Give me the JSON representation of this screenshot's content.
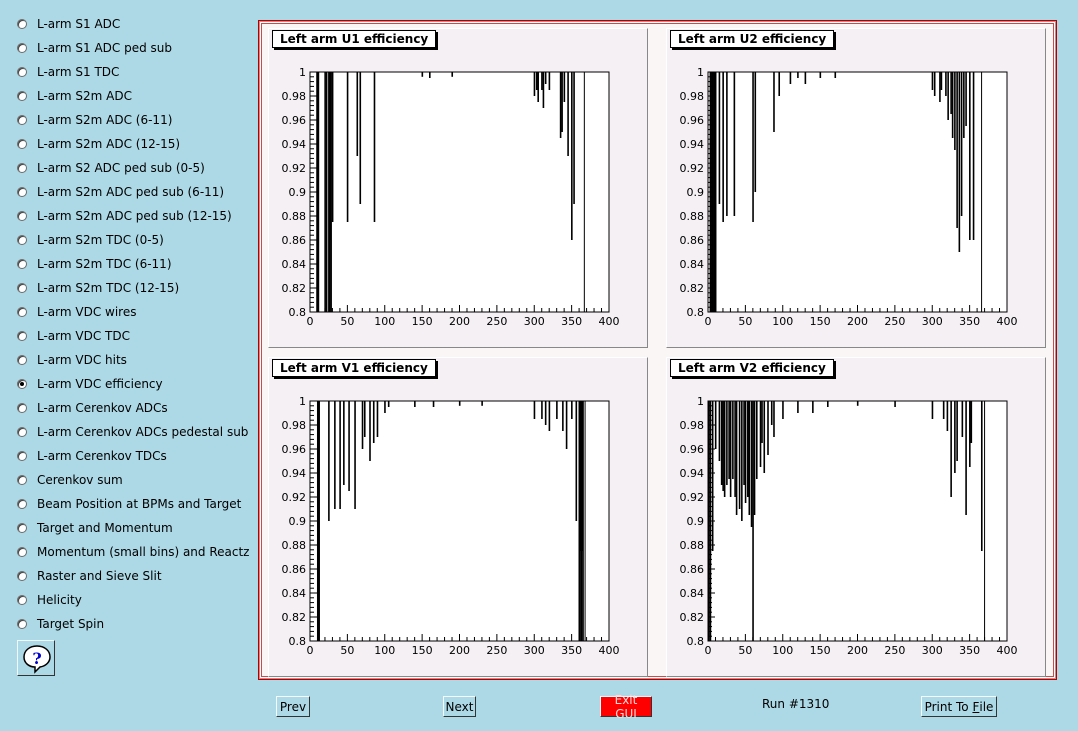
{
  "sidebar": {
    "options": [
      {
        "label": "L-arm S1 ADC",
        "checked": false
      },
      {
        "label": "L-arm S1 ADC ped sub",
        "checked": false
      },
      {
        "label": "L-arm S1 TDC",
        "checked": false
      },
      {
        "label": "L-arm S2m ADC",
        "checked": false
      },
      {
        "label": "L-arm S2m ADC (6-11)",
        "checked": false
      },
      {
        "label": "L-arm S2m ADC (12-15)",
        "checked": false
      },
      {
        "label": "L-arm S2 ADC ped sub (0-5)",
        "checked": false
      },
      {
        "label": "L-arm S2m ADC ped sub (6-11)",
        "checked": false
      },
      {
        "label": "L-arm S2m ADC ped sub (12-15)",
        "checked": false
      },
      {
        "label": "L-arm S2m TDC (0-5)",
        "checked": false
      },
      {
        "label": "L-arm S2m TDC (6-11)",
        "checked": false
      },
      {
        "label": "L-arm S2m TDC (12-15)",
        "checked": false
      },
      {
        "label": "L-arm VDC wires",
        "checked": false
      },
      {
        "label": "L-arm VDC TDC",
        "checked": false
      },
      {
        "label": "L-arm VDC hits",
        "checked": false
      },
      {
        "label": "L-arm VDC efficiency",
        "checked": true
      },
      {
        "label": "L-arm Cerenkov ADCs",
        "checked": false
      },
      {
        "label": "L-arm Cerenkov ADCs pedestal sub",
        "checked": false
      },
      {
        "label": "L-arm Cerenkov TDCs",
        "checked": false
      },
      {
        "label": "Cerenkov sum",
        "checked": false
      },
      {
        "label": "Beam Position at BPMs and Target",
        "checked": false
      },
      {
        "label": "Target and Momentum",
        "checked": false
      },
      {
        "label": "Momentum (small bins) and Reactz",
        "checked": false
      },
      {
        "label": "Raster and Sieve Slit",
        "checked": false
      },
      {
        "label": "Helicity",
        "checked": false
      },
      {
        "label": "Target Spin",
        "checked": false
      }
    ],
    "help_icon": "question-mark-icon"
  },
  "footer": {
    "prev_label": "Prev",
    "next_label": "Next",
    "exit_label": "Exit GUI",
    "run_label": "Run #1310",
    "print_label_prefix": "Print To ",
    "print_label_accel": "F",
    "print_label_suffix": "ile",
    "exit_color": "#ff0000"
  },
  "chart_data": [
    {
      "type": "bar",
      "title": "Left arm U1 efficiency",
      "xlim": [
        0,
        400
      ],
      "ylim": [
        0.8,
        1.0
      ],
      "xticks": [
        0,
        50,
        100,
        150,
        200,
        250,
        300,
        350,
        400
      ],
      "yticks": [
        "0.8",
        "0.82",
        "0.84",
        "0.86",
        "0.88",
        "0.9",
        "0.92",
        "0.94",
        "0.96",
        "0.98",
        "1"
      ],
      "entries_range": [
        9,
        367
      ],
      "dips": [
        [
          10,
          0.8
        ],
        [
          11,
          0.8
        ],
        [
          20,
          0.8
        ],
        [
          22,
          0.8
        ],
        [
          25,
          0.8
        ],
        [
          26,
          0.8
        ],
        [
          27,
          0.86
        ],
        [
          28,
          0.8
        ],
        [
          30,
          0.875
        ],
        [
          50,
          0.875
        ],
        [
          63,
          0.93
        ],
        [
          67,
          0.89
        ],
        [
          86,
          0.875
        ],
        [
          150,
          0.996
        ],
        [
          160,
          0.995
        ],
        [
          190,
          0.996
        ],
        [
          300,
          0.98
        ],
        [
          303,
          0.985
        ],
        [
          305,
          0.975
        ],
        [
          310,
          0.985
        ],
        [
          312,
          0.97
        ],
        [
          315,
          0.99
        ],
        [
          320,
          0.985
        ],
        [
          335,
          0.945
        ],
        [
          337,
          0.95
        ],
        [
          340,
          0.975
        ],
        [
          345,
          0.93
        ],
        [
          350,
          0.86
        ],
        [
          353,
          0.89
        ]
      ]
    },
    {
      "type": "bar",
      "title": "Left arm U2 efficiency",
      "xlim": [
        0,
        400
      ],
      "ylim": [
        0.8,
        1.0
      ],
      "xticks": [
        0,
        50,
        100,
        150,
        200,
        250,
        300,
        350,
        400
      ],
      "yticks": [
        "0.8",
        "0.82",
        "0.84",
        "0.86",
        "0.88",
        "0.9",
        "0.92",
        "0.94",
        "0.96",
        "0.98",
        "1"
      ],
      "entries_range": [
        3,
        366
      ],
      "dips": [
        [
          3,
          0.8
        ],
        [
          4,
          0.8
        ],
        [
          6,
          0.8
        ],
        [
          8,
          0.8
        ],
        [
          9,
          0.8
        ],
        [
          10,
          0.8
        ],
        [
          15,
          0.89
        ],
        [
          20,
          0.875
        ],
        [
          25,
          0.88
        ],
        [
          35,
          0.88
        ],
        [
          60,
          0.875
        ],
        [
          63,
          0.9
        ],
        [
          88,
          0.95
        ],
        [
          95,
          0.98
        ],
        [
          110,
          0.99
        ],
        [
          120,
          0.995
        ],
        [
          130,
          0.99
        ],
        [
          150,
          0.995
        ],
        [
          170,
          0.995
        ],
        [
          300,
          0.985
        ],
        [
          303,
          0.98
        ],
        [
          310,
          0.975
        ],
        [
          312,
          0.985
        ],
        [
          318,
          0.98
        ],
        [
          321,
          0.96
        ],
        [
          325,
          0.965
        ],
        [
          327,
          0.945
        ],
        [
          330,
          0.935
        ],
        [
          333,
          0.87
        ],
        [
          336,
          0.85
        ],
        [
          339,
          0.88
        ],
        [
          342,
          0.945
        ],
        [
          345,
          0.955
        ],
        [
          350,
          0.86
        ],
        [
          355,
          0.86
        ]
      ]
    },
    {
      "type": "bar",
      "title": "Left arm V1 efficiency",
      "xlim": [
        0,
        400
      ],
      "ylim": [
        0.8,
        1.0
      ],
      "xticks": [
        0,
        50,
        100,
        150,
        200,
        250,
        300,
        350,
        400
      ],
      "yticks": [
        "0.8",
        "0.82",
        "0.84",
        "0.86",
        "0.88",
        "0.9",
        "0.92",
        "0.94",
        "0.96",
        "0.98",
        "1"
      ],
      "entries_range": [
        10,
        368
      ],
      "dips": [
        [
          11,
          0.8
        ],
        [
          12,
          0.8
        ],
        [
          25,
          0.9
        ],
        [
          33,
          0.91
        ],
        [
          40,
          0.91
        ],
        [
          45,
          0.93
        ],
        [
          52,
          0.925
        ],
        [
          60,
          0.91
        ],
        [
          70,
          0.96
        ],
        [
          73,
          0.97
        ],
        [
          80,
          0.95
        ],
        [
          85,
          0.965
        ],
        [
          90,
          0.97
        ],
        [
          100,
          0.99
        ],
        [
          105,
          0.995
        ],
        [
          140,
          0.995
        ],
        [
          165,
          0.995
        ],
        [
          200,
          0.996
        ],
        [
          230,
          0.996
        ],
        [
          300,
          0.985
        ],
        [
          310,
          0.985
        ],
        [
          315,
          0.98
        ],
        [
          320,
          0.975
        ],
        [
          330,
          0.985
        ],
        [
          338,
          0.975
        ],
        [
          343,
          0.96
        ],
        [
          350,
          0.985
        ],
        [
          356,
          0.9
        ],
        [
          360,
          0.8
        ],
        [
          361,
          0.8
        ],
        [
          362,
          0.875
        ],
        [
          363,
          0.8
        ],
        [
          364,
          0.875
        ],
        [
          365,
          0.8
        ]
      ]
    },
    {
      "type": "bar",
      "title": "Left arm V2 efficiency",
      "xlim": [
        0,
        400
      ],
      "ylim": [
        0.8,
        1.0
      ],
      "xticks": [
        0,
        50,
        100,
        150,
        200,
        250,
        300,
        350,
        400
      ],
      "yticks": [
        "0.8",
        "0.82",
        "0.84",
        "0.86",
        "0.88",
        "0.9",
        "0.92",
        "0.94",
        "0.96",
        "0.98",
        "1"
      ],
      "entries_range": [
        1,
        370
      ],
      "dips": [
        [
          1,
          0.8
        ],
        [
          3,
          0.8
        ],
        [
          6,
          0.875
        ],
        [
          10,
          0.96
        ],
        [
          15,
          0.95
        ],
        [
          18,
          0.93
        ],
        [
          20,
          0.925
        ],
        [
          22,
          0.92
        ],
        [
          25,
          0.93
        ],
        [
          28,
          0.935
        ],
        [
          30,
          0.92
        ],
        [
          33,
          0.935
        ],
        [
          36,
          0.92
        ],
        [
          38,
          0.905
        ],
        [
          42,
          0.91
        ],
        [
          45,
          0.9
        ],
        [
          48,
          0.93
        ],
        [
          50,
          0.915
        ],
        [
          53,
          0.92
        ],
        [
          55,
          0.905
        ],
        [
          58,
          0.895
        ],
        [
          60,
          0.8
        ],
        [
          62,
          0.905
        ],
        [
          65,
          0.935
        ],
        [
          70,
          0.945
        ],
        [
          72,
          0.965
        ],
        [
          75,
          0.94
        ],
        [
          80,
          0.955
        ],
        [
          85,
          0.98
        ],
        [
          88,
          0.97
        ],
        [
          100,
          0.985
        ],
        [
          120,
          0.99
        ],
        [
          140,
          0.99
        ],
        [
          160,
          0.995
        ],
        [
          200,
          0.996
        ],
        [
          250,
          0.995
        ],
        [
          300,
          0.985
        ],
        [
          315,
          0.985
        ],
        [
          320,
          0.975
        ],
        [
          325,
          0.92
        ],
        [
          330,
          0.94
        ],
        [
          333,
          0.95
        ],
        [
          340,
          0.97
        ],
        [
          345,
          0.905
        ],
        [
          350,
          0.945
        ],
        [
          352,
          0.965
        ],
        [
          366,
          0.875
        ]
      ]
    }
  ]
}
